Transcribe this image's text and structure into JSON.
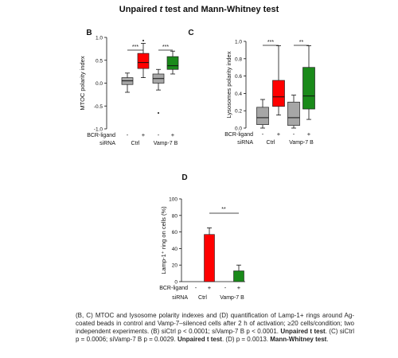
{
  "title": {
    "prefix": "Unpaired ",
    "t": "t",
    "suffix": " test and Mann-Whitney test"
  },
  "colors": {
    "gray": "#a6a6a6",
    "red": "#ff0000",
    "green": "#1a8a1a"
  },
  "panels": {
    "B": {
      "letter": "B",
      "ylabel": "MTOC polarity index",
      "yticks": [
        "1.0",
        "0.5",
        "0.0",
        "-0.5",
        "-1.0"
      ],
      "sig": [
        "***",
        "***"
      ]
    },
    "C": {
      "letter": "C",
      "ylabel": "Lysosomes polarity index",
      "yticks": [
        "1.0",
        "0.8",
        "0.6",
        "0.4",
        "0.2",
        "0.0"
      ],
      "sig": [
        "***",
        "**"
      ]
    },
    "D": {
      "letter": "D",
      "ylabel": "Lamp-1⁺ ring on cells (%)",
      "yticks": [
        "100",
        "80",
        "60",
        "40",
        "20",
        "0"
      ],
      "sig": [
        "**"
      ]
    }
  },
  "axis_labels": {
    "bcr": "BCR-ligand",
    "sirna": "siRNA",
    "minus": "-",
    "plus": "+",
    "ctrl": "Ctrl",
    "vamp": "Vamp-7 B"
  },
  "chart_data": [
    {
      "type": "box",
      "panel": "B",
      "ylabel": "MTOC polarity index",
      "ylim": [
        -1.0,
        1.0
      ],
      "groups": [
        {
          "bcr": "-",
          "sirna": "Ctrl",
          "color": "gray",
          "whislo": -0.2,
          "q1": -0.03,
          "med": 0.05,
          "q3": 0.12,
          "whishi": 0.22
        },
        {
          "bcr": "+",
          "sirna": "Ctrl",
          "color": "red",
          "whislo": 0.12,
          "q1": 0.32,
          "med": 0.45,
          "q3": 0.65,
          "whishi": 0.87
        },
        {
          "bcr": "-",
          "sirna": "Vamp-7 B",
          "color": "gray",
          "whislo": -0.15,
          "q1": 0.0,
          "med": 0.1,
          "q3": 0.2,
          "whishi": 0.3
        },
        {
          "bcr": "+",
          "sirna": "Vamp-7 B",
          "color": "green",
          "whislo": 0.2,
          "q1": 0.3,
          "med": 0.38,
          "q3": 0.58,
          "whishi": 0.7
        }
      ],
      "significance": [
        "***",
        "***"
      ]
    },
    {
      "type": "box",
      "panel": "C",
      "ylabel": "Lysosomes polarity index",
      "ylim": [
        0.0,
        1.0
      ],
      "groups": [
        {
          "bcr": "-",
          "sirna": "Ctrl",
          "color": "gray",
          "whislo": 0.0,
          "q1": 0.04,
          "med": 0.12,
          "q3": 0.24,
          "whishi": 0.33
        },
        {
          "bcr": "+",
          "sirna": "Ctrl",
          "color": "red",
          "whislo": 0.15,
          "q1": 0.25,
          "med": 0.36,
          "q3": 0.55,
          "whishi": 0.95
        },
        {
          "bcr": "-",
          "sirna": "Vamp-7 B",
          "color": "gray",
          "whislo": 0.0,
          "q1": 0.03,
          "med": 0.12,
          "q3": 0.3,
          "whishi": 0.38
        },
        {
          "bcr": "+",
          "sirna": "Vamp-7 B",
          "color": "green",
          "whislo": 0.1,
          "q1": 0.22,
          "med": 0.37,
          "q3": 0.7,
          "whishi": 0.95
        }
      ],
      "significance": [
        "***",
        "**"
      ]
    },
    {
      "type": "bar",
      "panel": "D",
      "ylabel": "Lamp-1⁺ ring on cells (%)",
      "ylim": [
        0,
        100
      ],
      "categories": [
        "- Ctrl",
        "+ Ctrl",
        "- Vamp-7 B",
        "+ Vamp-7 B"
      ],
      "values": [
        0,
        57,
        0,
        13
      ],
      "errors": [
        0,
        8,
        0,
        7
      ],
      "colors": [
        "gray",
        "red",
        "gray",
        "green"
      ],
      "significance": [
        "**"
      ]
    }
  ],
  "caption": {
    "main": "(B, C) MTOC and lysosome polarity indexes and (D) quantification of Lamp-1+ rings around Ag-coated beads in control and Vamp-7–silenced cells after 2 h of activation; ≥20 cells/condition; two independent experiments. (B) siCtrl p < 0.0001; siVamp-7 B p < 0.0001. ",
    "b1": "Unpaired t test",
    "mid": ". (C) siCtrl p = 0.0006; siVamp-7 B p = 0.0029. ",
    "b2": "Unpaired t test",
    "mid2": ". (D) p = 0.0013. ",
    "b3": "Mann-Whitney test",
    "end": "."
  }
}
